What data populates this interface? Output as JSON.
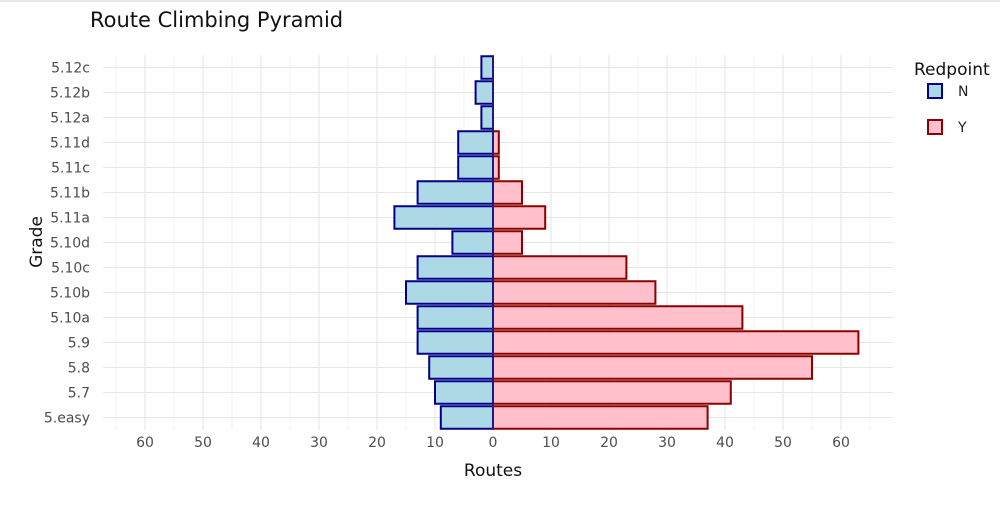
{
  "chart_data": {
    "type": "bar",
    "orientation": "horizontal-diverging",
    "title": "Route Climbing Pyramid",
    "xlabel": "Routes",
    "ylabel": "Grade",
    "categories": [
      "5.easy",
      "5.7",
      "5.8",
      "5.9",
      "5.10a",
      "5.10b",
      "5.10c",
      "5.10d",
      "5.11a",
      "5.11b",
      "5.11c",
      "5.11d",
      "5.12a",
      "5.12b",
      "5.12c"
    ],
    "series": [
      {
        "name": "N",
        "direction": "left",
        "fill": "#add8e6",
        "stroke": "#00008b",
        "values": [
          9,
          10,
          11,
          13,
          13,
          15,
          13,
          7,
          17,
          13,
          6,
          6,
          2,
          3,
          2
        ]
      },
      {
        "name": "Y",
        "direction": "right",
        "fill": "#ffc0cb",
        "stroke": "#8b0000",
        "values": [
          37,
          41,
          55,
          63,
          43,
          28,
          23,
          5,
          9,
          5,
          1,
          1,
          0,
          0,
          0
        ]
      }
    ],
    "xlim": [
      -67,
      69
    ],
    "xticks": [
      -60,
      -50,
      -40,
      -30,
      -20,
      -10,
      0,
      10,
      20,
      30,
      40,
      50,
      60
    ],
    "xtick_labels": [
      "60",
      "50",
      "40",
      "30",
      "20",
      "10",
      "0",
      "10",
      "20",
      "30",
      "40",
      "50",
      "60"
    ],
    "legend": {
      "title": "Redpoint",
      "position": "right",
      "items": [
        "N",
        "Y"
      ]
    },
    "grid": true
  }
}
